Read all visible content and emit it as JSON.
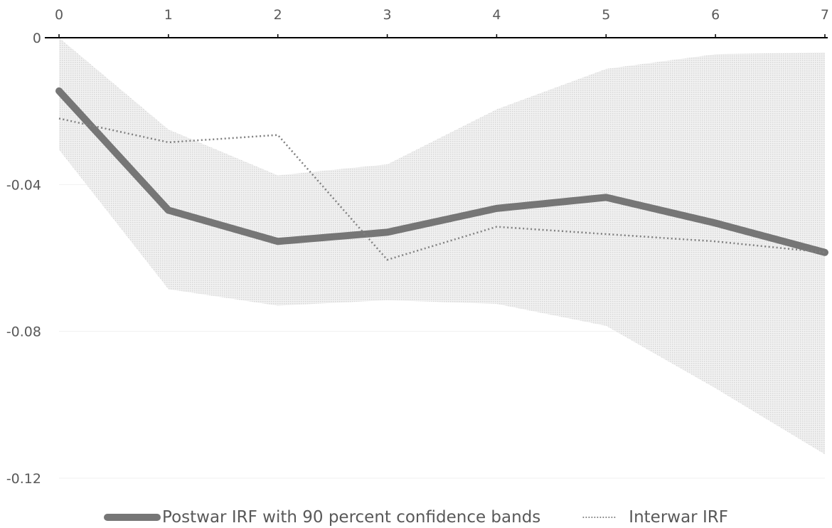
{
  "chart_data": {
    "type": "line",
    "title": "",
    "xlabel": "",
    "ylabel": "",
    "x": [
      0,
      1,
      2,
      3,
      4,
      5,
      6,
      7
    ],
    "x_tick_labels": [
      "0",
      "1",
      "2",
      "3",
      "4",
      "5",
      "6",
      "7"
    ],
    "y_tick_labels": [
      "0",
      "-0.04",
      "-0.08",
      "-0.12"
    ],
    "y_ticks": [
      0,
      -0.04,
      -0.08,
      -0.12
    ],
    "xlim": [
      0,
      7
    ],
    "ylim": [
      -0.12,
      0
    ],
    "x_axis_position": "top",
    "grid": true,
    "legend_position": "bottom",
    "series": [
      {
        "name": "Postwar IRF with 90 percent confidence bands",
        "values": [
          -0.0145,
          -0.047,
          -0.0555,
          -0.053,
          -0.0465,
          -0.0435,
          -0.0505,
          -0.0585
        ],
        "color": "#767676",
        "style": "solid-thick"
      },
      {
        "name": "Interwar IRF",
        "values": [
          -0.022,
          -0.0285,
          -0.0265,
          -0.0605,
          -0.0515,
          -0.0535,
          -0.0555,
          -0.0585
        ],
        "color": "#808080",
        "style": "dotted"
      }
    ],
    "confidence_band": {
      "lower": [
        -0.0305,
        -0.0685,
        -0.073,
        -0.0715,
        -0.0725,
        -0.0785,
        -0.0955,
        -0.1135
      ],
      "upper": [
        0.0,
        -0.025,
        -0.0375,
        -0.0345,
        -0.0195,
        -0.0085,
        -0.0045,
        -0.004
      ],
      "color": "#d9d9d9"
    }
  }
}
